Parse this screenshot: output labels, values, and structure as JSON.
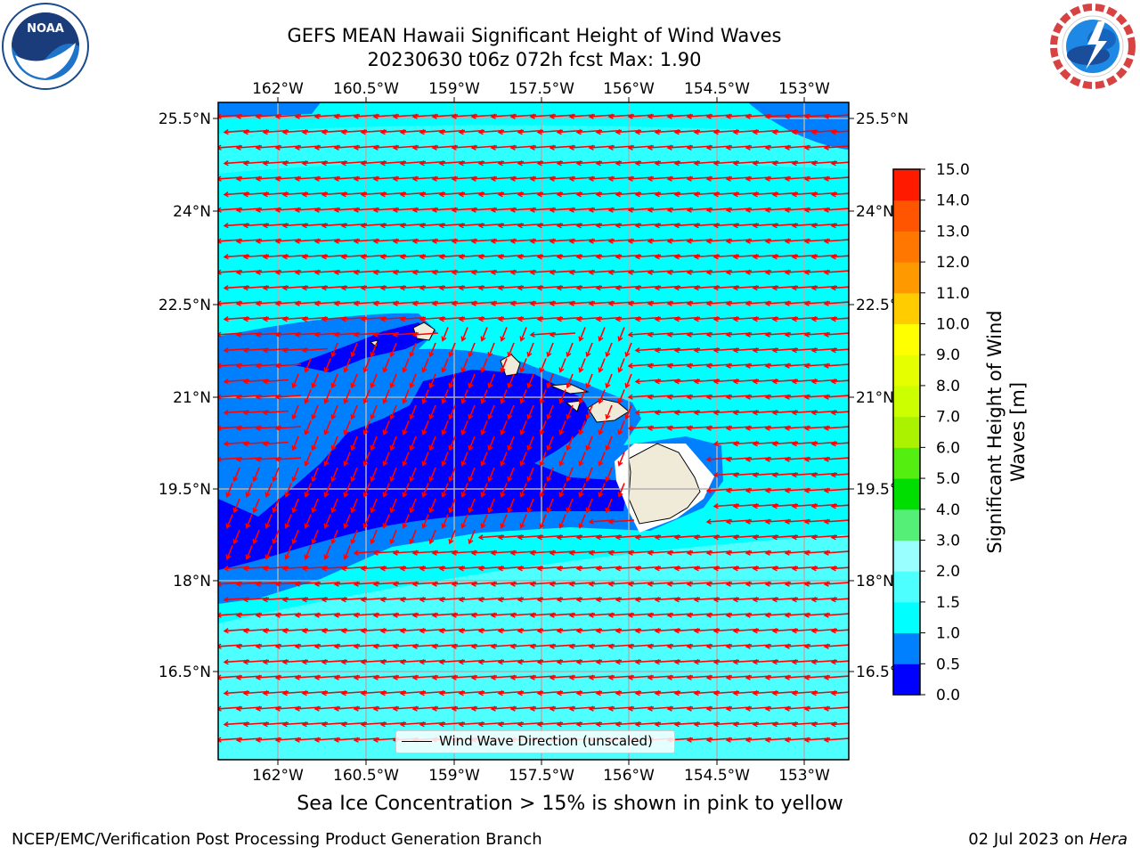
{
  "header": {
    "title_line1": "GEFS MEAN Hawaii Significant Height of Wind Waves",
    "title_line2": "20230630 t06z 072h fcst   Max: 1.90",
    "logo_left_text": "NOAA",
    "logo_right_text": "NATIONAL WEATHER SERVICE"
  },
  "map": {
    "lon_labels": [
      "162°W",
      "160.5°W",
      "159°W",
      "157.5°W",
      "156°W",
      "154.5°W",
      "153°W"
    ],
    "lat_labels": [
      "25.5°N",
      "24°N",
      "22.5°N",
      "21°N",
      "19.5°N",
      "18°N",
      "16.5°N"
    ],
    "legend_label": "Wind Wave Direction (unscaled)",
    "colors": {
      "bg": "#00ffff",
      "light": "#4dffff",
      "mid": "#0080ff",
      "dark": "#0000ff",
      "land": "#efebd8",
      "arrow": "#ff0000"
    }
  },
  "colorbar": {
    "title": "Significant Height of Wind Waves [m]",
    "levels": [
      "0.0",
      "0.5",
      "1.0",
      "1.5",
      "2.0",
      "3.0",
      "4.0",
      "5.0",
      "6.0",
      "7.0",
      "8.0",
      "9.0",
      "10.0",
      "11.0",
      "12.0",
      "13.0",
      "14.0",
      "15.0"
    ],
    "colors": [
      "#0000ff",
      "#0080ff",
      "#00ffff",
      "#4dffff",
      "#99ffff",
      "#55ee77",
      "#00dd00",
      "#55ee11",
      "#aaf200",
      "#ccff00",
      "#e6ff00",
      "#ffff00",
      "#ffcc00",
      "#ff9900",
      "#ff7700",
      "#ff5500",
      "#ff1a00"
    ]
  },
  "footer": {
    "ice_note": "Sea Ice Concentration > 15% is shown in pink to yellow",
    "credit": "NCEP/EMC/Verification Post Processing Product Generation Branch",
    "date_prefix": "02 Jul 2023 on ",
    "machine": "Hera"
  }
}
